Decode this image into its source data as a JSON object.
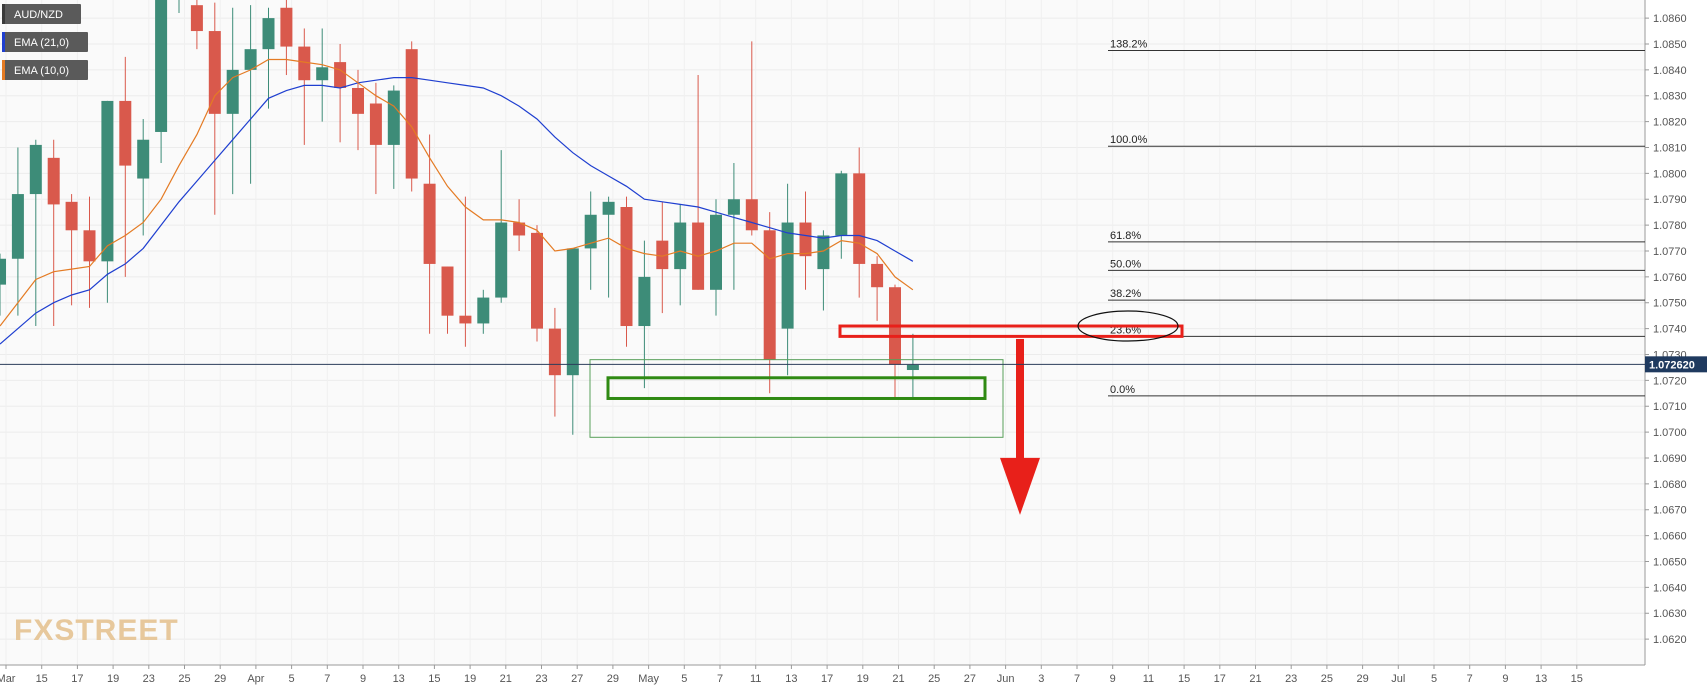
{
  "chart_data": {
    "type": "candlestick",
    "symbol": "AUD/NZD",
    "legend": [
      {
        "label": "AUD/NZD",
        "color": "#3a3a3a"
      },
      {
        "label": "EMA (21,0)",
        "color": "#1f3fd0"
      },
      {
        "label": "EMA (10,0)",
        "color": "#e47b24"
      }
    ],
    "current_price": "1.072620",
    "ylim": [
      1.061,
      1.0867
    ],
    "y_ticks": [
      "1.0860",
      "1.0850",
      "1.0840",
      "1.0830",
      "1.0820",
      "1.0810",
      "1.0800",
      "1.0790",
      "1.0780",
      "1.0770",
      "1.0760",
      "1.0750",
      "1.0740",
      "1.0730",
      "1.0720",
      "1.0710",
      "1.0700",
      "1.0690",
      "1.0680",
      "1.0670",
      "1.0660",
      "1.0650",
      "1.0640",
      "1.0630",
      "1.0620"
    ],
    "x_labels": [
      "Mar",
      "15",
      "17",
      "19",
      "23",
      "25",
      "29",
      "Apr",
      "5",
      "7",
      "9",
      "13",
      "15",
      "19",
      "21",
      "23",
      "27",
      "29",
      "May",
      "5",
      "7",
      "11",
      "13",
      "17",
      "19",
      "21",
      "25",
      "27",
      "Jun",
      "3",
      "7",
      "9",
      "11",
      "15",
      "17",
      "21",
      "23",
      "25",
      "29",
      "Jul",
      "5",
      "7",
      "9",
      "13",
      "15"
    ],
    "candles": [
      {
        "o": 1.0757,
        "h": 1.0769,
        "l": 1.0745,
        "c": 1.0767
      },
      {
        "o": 1.0767,
        "h": 1.081,
        "l": 1.0745,
        "c": 1.0792
      },
      {
        "o": 1.0792,
        "h": 1.0813,
        "l": 1.0741,
        "c": 1.0811
      },
      {
        "o": 1.0806,
        "h": 1.0813,
        "l": 1.0741,
        "c": 1.0788
      },
      {
        "o": 1.0789,
        "h": 1.0792,
        "l": 1.0749,
        "c": 1.0778
      },
      {
        "o": 1.0778,
        "h": 1.0791,
        "l": 1.0748,
        "c": 1.0766
      },
      {
        "o": 1.0766,
        "h": 1.0828,
        "l": 1.075,
        "c": 1.0828
      },
      {
        "o": 1.0828,
        "h": 1.0845,
        "l": 1.076,
        "c": 1.0803
      },
      {
        "o": 1.0798,
        "h": 1.0821,
        "l": 1.0776,
        "c": 1.0813
      },
      {
        "o": 1.0816,
        "h": 1.0872,
        "l": 1.0804,
        "c": 1.0872
      },
      {
        "o": 1.0868,
        "h": 1.0876,
        "l": 1.0862,
        "c": 1.0868
      },
      {
        "o": 1.0865,
        "h": 1.087,
        "l": 1.0848,
        "c": 1.0855
      },
      {
        "o": 1.0855,
        "h": 1.0866,
        "l": 1.0784,
        "c": 1.0823
      },
      {
        "o": 1.0823,
        "h": 1.0864,
        "l": 1.0792,
        "c": 1.084
      },
      {
        "o": 1.084,
        "h": 1.0865,
        "l": 1.0796,
        "c": 1.0848
      },
      {
        "o": 1.0848,
        "h": 1.0864,
        "l": 1.0825,
        "c": 1.086
      },
      {
        "o": 1.0864,
        "h": 1.0868,
        "l": 1.0838,
        "c": 1.0849
      },
      {
        "o": 1.0849,
        "h": 1.0856,
        "l": 1.0811,
        "c": 1.0836
      },
      {
        "o": 1.0836,
        "h": 1.0856,
        "l": 1.082,
        "c": 1.0841
      },
      {
        "o": 1.0843,
        "h": 1.085,
        "l": 1.0812,
        "c": 1.0833
      },
      {
        "o": 1.0833,
        "h": 1.084,
        "l": 1.0809,
        "c": 1.0823
      },
      {
        "o": 1.0827,
        "h": 1.0835,
        "l": 1.0792,
        "c": 1.0811
      },
      {
        "o": 1.0811,
        "h": 1.0834,
        "l": 1.0794,
        "c": 1.0832
      },
      {
        "o": 1.0848,
        "h": 1.0851,
        "l": 1.0793,
        "c": 1.0798
      },
      {
        "o": 1.0796,
        "h": 1.0815,
        "l": 1.0738,
        "c": 1.0765
      },
      {
        "o": 1.0764,
        "h": 1.0764,
        "l": 1.0738,
        "c": 1.0745
      },
      {
        "o": 1.0745,
        "h": 1.0791,
        "l": 1.0733,
        "c": 1.0742
      },
      {
        "o": 1.0742,
        "h": 1.0755,
        "l": 1.0738,
        "c": 1.0752
      },
      {
        "o": 1.0752,
        "h": 1.0809,
        "l": 1.075,
        "c": 1.0781
      },
      {
        "o": 1.0781,
        "h": 1.079,
        "l": 1.077,
        "c": 1.0776
      },
      {
        "o": 1.0777,
        "h": 1.078,
        "l": 1.0735,
        "c": 1.074
      },
      {
        "o": 1.074,
        "h": 1.0748,
        "l": 1.0706,
        "c": 1.0722
      },
      {
        "o": 1.0722,
        "h": 1.0771,
        "l": 1.0699,
        "c": 1.0771
      },
      {
        "o": 1.0771,
        "h": 1.0793,
        "l": 1.0755,
        "c": 1.0784
      },
      {
        "o": 1.0784,
        "h": 1.0791,
        "l": 1.0752,
        "c": 1.0789
      },
      {
        "o": 1.0787,
        "h": 1.0791,
        "l": 1.0733,
        "c": 1.0741
      },
      {
        "o": 1.0741,
        "h": 1.0774,
        "l": 1.0717,
        "c": 1.076
      },
      {
        "o": 1.0774,
        "h": 1.0789,
        "l": 1.0746,
        "c": 1.0763
      },
      {
        "o": 1.0763,
        "h": 1.0788,
        "l": 1.0749,
        "c": 1.0781
      },
      {
        "o": 1.0781,
        "h": 1.0838,
        "l": 1.0755,
        "c": 1.0755
      },
      {
        "o": 1.0755,
        "h": 1.079,
        "l": 1.0745,
        "c": 1.0784
      },
      {
        "o": 1.0784,
        "h": 1.0804,
        "l": 1.0755,
        "c": 1.079
      },
      {
        "o": 1.079,
        "h": 1.0851,
        "l": 1.0776,
        "c": 1.0778
      },
      {
        "o": 1.0778,
        "h": 1.0785,
        "l": 1.0715,
        "c": 1.0728
      },
      {
        "o": 1.074,
        "h": 1.0796,
        "l": 1.0722,
        "c": 1.0781
      },
      {
        "o": 1.0781,
        "h": 1.0793,
        "l": 1.0755,
        "c": 1.0768
      },
      {
        "o": 1.0763,
        "h": 1.0778,
        "l": 1.0747,
        "c": 1.0776
      },
      {
        "o": 1.0776,
        "h": 1.0801,
        "l": 1.0767,
        "c": 1.08
      },
      {
        "o": 1.08,
        "h": 1.081,
        "l": 1.0752,
        "c": 1.0765
      },
      {
        "o": 1.0765,
        "h": 1.0768,
        "l": 1.0743,
        "c": 1.0756
      },
      {
        "o": 1.0756,
        "h": 1.0757,
        "l": 1.0713,
        "c": 1.0726
      },
      {
        "o": 1.0724,
        "h": 1.0738,
        "l": 1.0713,
        "c": 1.0726
      }
    ],
    "ema21": [
      1.0734,
      1.074,
      1.0746,
      1.075,
      1.0753,
      1.0755,
      1.0761,
      1.0765,
      1.0771,
      1.078,
      1.0789,
      1.0797,
      1.0805,
      1.0813,
      1.0821,
      1.0829,
      1.0832,
      1.0834,
      1.0834,
      1.0833,
      1.0835,
      1.0836,
      1.0837,
      1.0837,
      1.0836,
      1.0835,
      1.0834,
      1.0833,
      1.083,
      1.0826,
      1.0821,
      1.0814,
      1.0808,
      1.0803,
      1.0799,
      1.0795,
      1.079,
      1.0789,
      1.0788,
      1.0787,
      1.0785,
      1.0783,
      1.0781,
      1.0779,
      1.0777,
      1.0776,
      1.0775,
      1.0776,
      1.0776,
      1.0774,
      1.077,
      1.0766
    ],
    "ema10": [
      1.0741,
      1.075,
      1.0759,
      1.0762,
      1.0763,
      1.0764,
      1.0772,
      1.0776,
      1.0781,
      1.079,
      1.0803,
      1.0815,
      1.083,
      1.0837,
      1.084,
      1.0844,
      1.0844,
      1.0843,
      1.0842,
      1.084,
      1.0835,
      1.083,
      1.0826,
      1.0818,
      1.0806,
      1.0795,
      1.0787,
      1.0782,
      1.0782,
      1.0781,
      1.0778,
      1.077,
      1.0771,
      1.0773,
      1.0775,
      1.0771,
      1.0769,
      1.0768,
      1.077,
      1.0768,
      1.077,
      1.0773,
      1.0773,
      1.0767,
      1.0769,
      1.0769,
      1.077,
      1.0774,
      1.0773,
      1.0769,
      1.076,
      1.0755
    ],
    "fibonacci": [
      {
        "label": "138.2%",
        "price": 1.08475
      },
      {
        "label": "100.0%",
        "price": 1.08105
      },
      {
        "label": "61.8%",
        "price": 1.07735
      },
      {
        "label": "50.0%",
        "price": 1.07625
      },
      {
        "label": "38.2%",
        "price": 1.0751
      },
      {
        "label": "23.6%",
        "price": 1.0737
      },
      {
        "label": "0.0%",
        "price": 1.0714
      }
    ],
    "annotations": {
      "resistance_box": {
        "price_top": 1.0741,
        "price_bottom": 1.0737
      },
      "support_box_outer": {
        "price_top": 1.0728,
        "price_bottom": 1.0698
      },
      "support_box_inner": {
        "price_top": 1.0721,
        "price_bottom": 1.0713
      },
      "arrow": {
        "price_from": 1.0736,
        "price_to": 1.0668,
        "direction": "down"
      }
    },
    "watermark": "FXSTREET"
  }
}
